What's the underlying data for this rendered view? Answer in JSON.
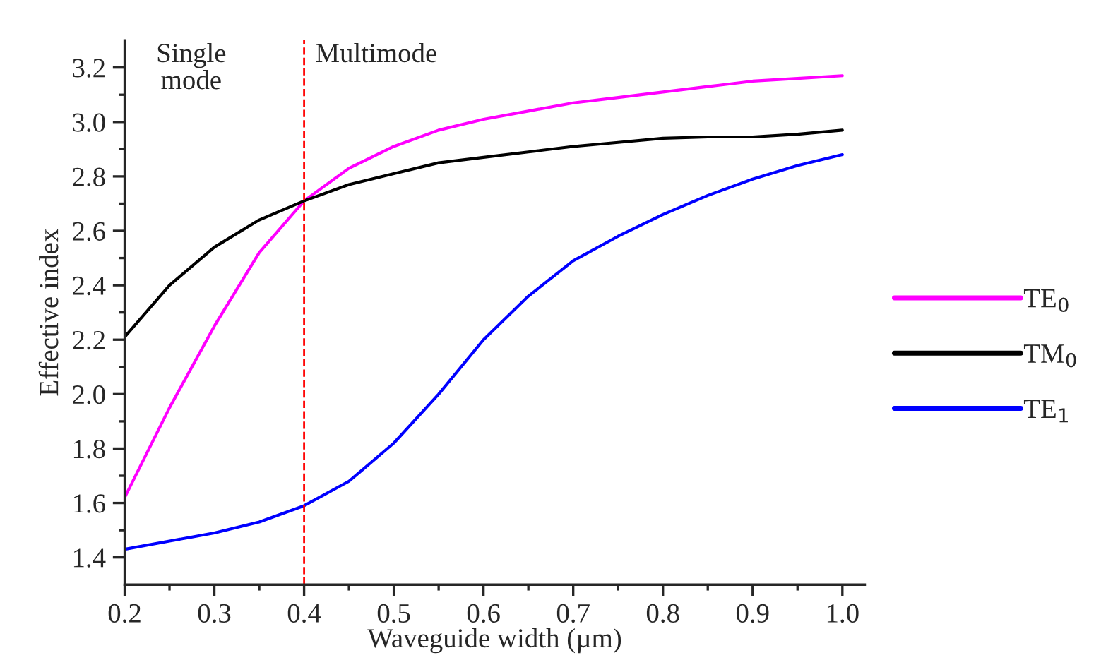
{
  "chart_data": {
    "type": "line",
    "xlabel": "Waveguide width (µm)",
    "ylabel": "Effective index",
    "x": [
      0.2,
      0.25,
      0.3,
      0.35,
      0.4,
      0.45,
      0.5,
      0.55,
      0.6,
      0.65,
      0.7,
      0.75,
      0.8,
      0.85,
      0.9,
      0.95,
      1.0
    ],
    "series": [
      {
        "name": "TE$_{0}$",
        "color": "#ff00ff",
        "values": [
          1.62,
          1.95,
          2.25,
          2.52,
          2.71,
          2.83,
          2.91,
          2.97,
          3.01,
          3.04,
          3.07,
          3.09,
          3.11,
          3.13,
          3.15,
          3.16,
          3.17
        ]
      },
      {
        "name": "TM$_{0}$",
        "color": "#000000",
        "values": [
          2.21,
          2.4,
          2.54,
          2.64,
          2.71,
          2.77,
          2.81,
          2.85,
          2.87,
          2.89,
          2.91,
          2.925,
          2.94,
          2.945,
          2.945,
          2.955,
          2.97
        ]
      },
      {
        "name": "TE$_{1}$",
        "color": "#0000ff",
        "values": [
          1.43,
          1.46,
          1.49,
          1.53,
          1.59,
          1.68,
          1.82,
          2.0,
          2.2,
          2.36,
          2.49,
          2.58,
          2.66,
          2.73,
          2.79,
          2.84,
          2.88
        ]
      }
    ],
    "xlim": [
      0.2,
      1.025
    ],
    "ylim": [
      1.3,
      3.3
    ],
    "xticks": [
      {
        "value": 0.2,
        "label": "0.2"
      },
      {
        "value": 0.3,
        "label": "0.3"
      },
      {
        "value": 0.4,
        "label": "0.4"
      },
      {
        "value": 0.5,
        "label": "0.5"
      },
      {
        "value": 0.6,
        "label": "0.6"
      },
      {
        "value": 0.7,
        "label": "0.7"
      },
      {
        "value": 0.8,
        "label": "0.8"
      },
      {
        "value": 0.9,
        "label": "0.9"
      },
      {
        "value": 1.0,
        "label": "1.0"
      }
    ],
    "yticks": [
      {
        "value": 1.4,
        "label": "1.4"
      },
      {
        "value": 1.6,
        "label": "1.6"
      },
      {
        "value": 1.8,
        "label": "1.8"
      },
      {
        "value": 2.0,
        "label": "2.0"
      },
      {
        "value": 2.2,
        "label": "2.2"
      },
      {
        "value": 2.4,
        "label": "2.4"
      },
      {
        "value": 2.6,
        "label": "2.6"
      },
      {
        "value": 2.8,
        "label": "2.8"
      },
      {
        "value": 3.0,
        "label": "3.0"
      },
      {
        "value": 3.2,
        "label": "3.2"
      }
    ],
    "ref_lines": [
      {
        "axis": "x",
        "value": 0.4,
        "color": "#ff0000",
        "line_style": "dashed"
      }
    ],
    "annotations": [
      "Single\nmode",
      "Multimode"
    ],
    "grid": false,
    "legend": "right",
    "line_style": "solid",
    "marker": "none"
  }
}
